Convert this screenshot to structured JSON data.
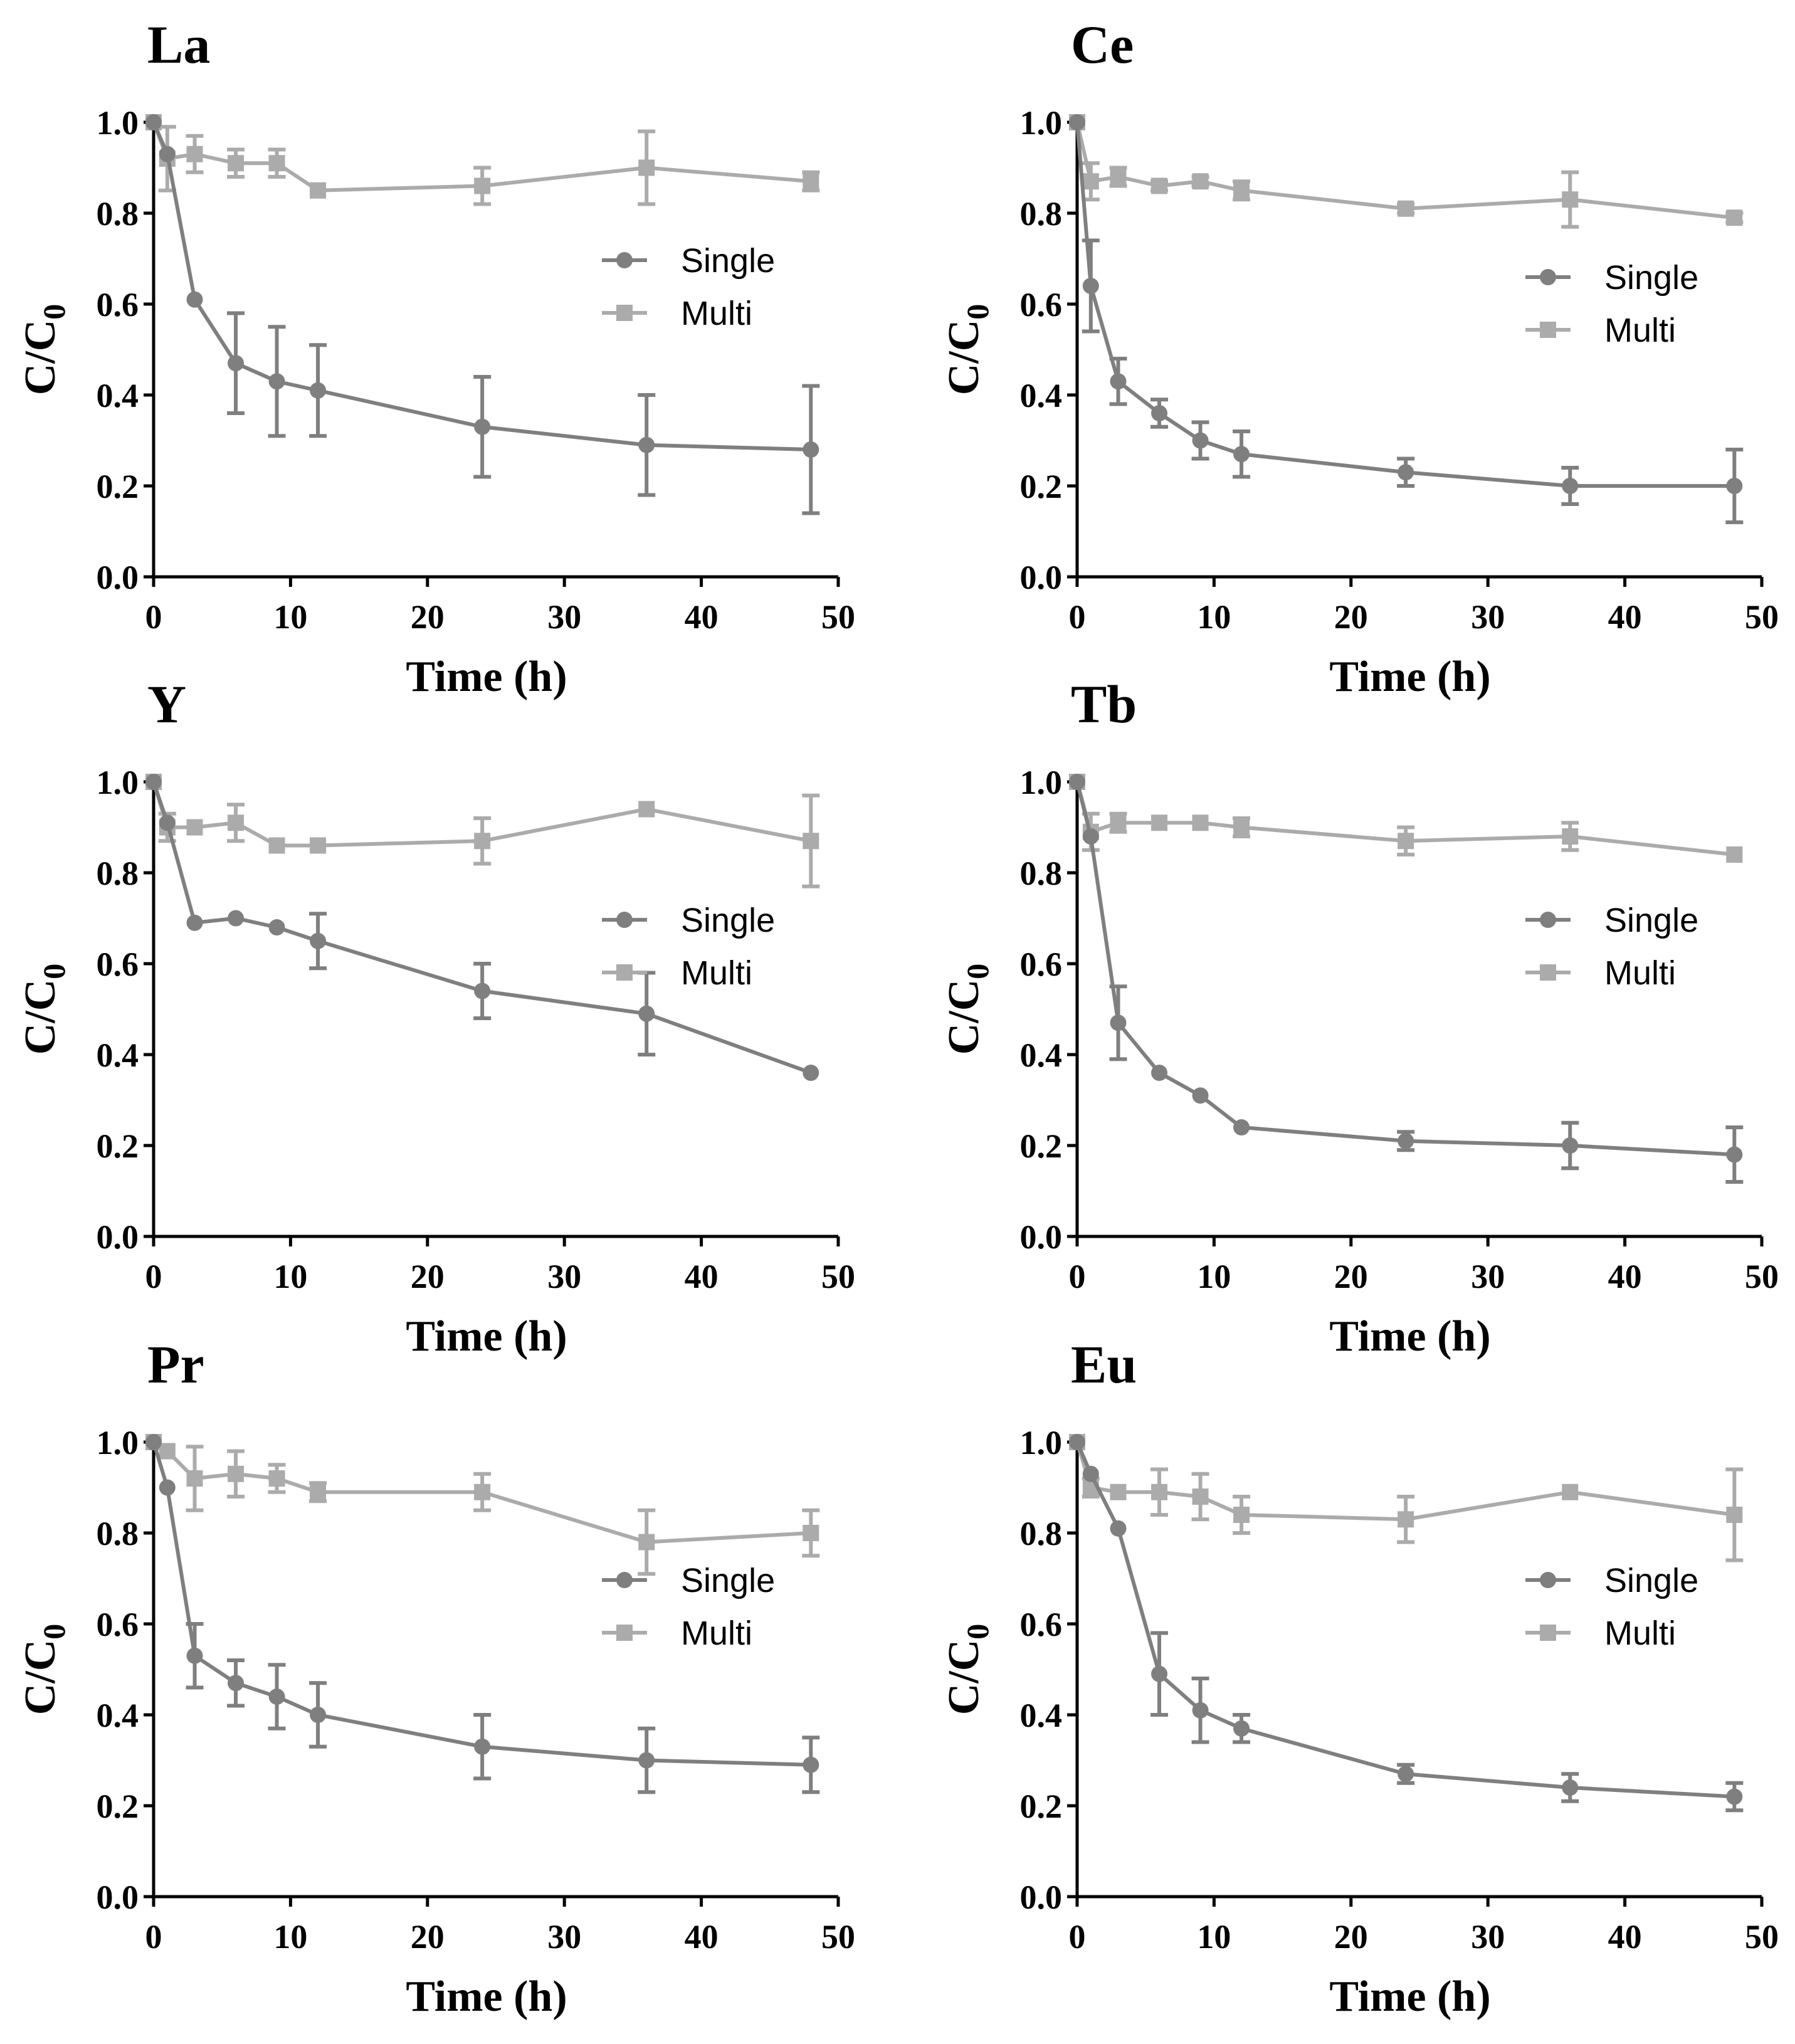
{
  "chart_data": [
    {
      "type": "line",
      "title": "La",
      "xlabel": "Time (h)",
      "ylabel": "C/C0",
      "xlim": [
        0,
        50
      ],
      "ylim": [
        0,
        1.0
      ],
      "legend": "right",
      "x": [
        0,
        1,
        3,
        6,
        9,
        12,
        24,
        36,
        48
      ],
      "series": [
        {
          "name": "Single",
          "marker": "circle",
          "color": "#7f7f7f",
          "values": [
            1.0,
            0.93,
            0.61,
            0.47,
            0.43,
            0.41,
            0.33,
            0.29,
            0.28
          ],
          "errors": [
            0,
            0,
            0,
            0.11,
            0.12,
            0.1,
            0.11,
            0.11,
            0.14
          ]
        },
        {
          "name": "Multi",
          "marker": "square",
          "color": "#ababab",
          "values": [
            1.0,
            0.92,
            0.93,
            0.91,
            0.91,
            0.85,
            0.86,
            0.9,
            0.87
          ],
          "errors": [
            0,
            0.07,
            0.04,
            0.03,
            0.03,
            0,
            0.04,
            0.08,
            0.02
          ]
        }
      ]
    },
    {
      "type": "line",
      "title": "Ce",
      "xlabel": "Time (h)",
      "ylabel": "C/C0",
      "xlim": [
        0,
        50
      ],
      "ylim": [
        0,
        1.0
      ],
      "legend": "right",
      "x": [
        0,
        1,
        3,
        6,
        9,
        12,
        24,
        36,
        48
      ],
      "series": [
        {
          "name": "Single",
          "marker": "circle",
          "color": "#7f7f7f",
          "values": [
            1.0,
            0.64,
            0.43,
            0.36,
            0.3,
            0.27,
            0.23,
            0.2,
            0.2
          ],
          "errors": [
            0,
            0.1,
            0.05,
            0.03,
            0.04,
            0.05,
            0.03,
            0.04,
            0.08
          ]
        },
        {
          "name": "Multi",
          "marker": "square",
          "color": "#ababab",
          "values": [
            1.0,
            0.87,
            0.88,
            0.86,
            0.87,
            0.85,
            0.81,
            0.83,
            0.79
          ],
          "errors": [
            0,
            0.04,
            0.02,
            0.01,
            0.01,
            0.02,
            0.01,
            0.06,
            0.01
          ]
        }
      ]
    },
    {
      "type": "line",
      "title": "Y",
      "xlabel": "Time (h)",
      "ylabel": "C/C0",
      "xlim": [
        0,
        50
      ],
      "ylim": [
        0,
        1.0
      ],
      "legend": "right",
      "x": [
        0,
        1,
        3,
        6,
        9,
        12,
        24,
        36,
        48
      ],
      "series": [
        {
          "name": "Single",
          "marker": "circle",
          "color": "#7f7f7f",
          "values": [
            1.0,
            0.91,
            0.69,
            0.7,
            0.68,
            0.65,
            0.54,
            0.49,
            0.36
          ],
          "errors": [
            0,
            0,
            0,
            0,
            0,
            0.06,
            0.06,
            0.09,
            0
          ]
        },
        {
          "name": "Multi",
          "marker": "square",
          "color": "#ababab",
          "values": [
            1.0,
            0.9,
            0.9,
            0.91,
            0.86,
            0.86,
            0.87,
            0.94,
            0.87
          ],
          "errors": [
            0,
            0.03,
            0,
            0.04,
            0,
            0,
            0.05,
            0,
            0.1
          ]
        }
      ]
    },
    {
      "type": "line",
      "title": "Tb",
      "xlabel": "Time (h)",
      "ylabel": "C/C0",
      "xlim": [
        0,
        50
      ],
      "ylim": [
        0,
        1.0
      ],
      "legend": "right",
      "x": [
        0,
        1,
        3,
        6,
        9,
        12,
        24,
        36,
        48
      ],
      "series": [
        {
          "name": "Single",
          "marker": "circle",
          "color": "#7f7f7f",
          "values": [
            1.0,
            0.88,
            0.47,
            0.36,
            0.31,
            0.24,
            0.21,
            0.2,
            0.18
          ],
          "errors": [
            0,
            0,
            0.08,
            0,
            0,
            0,
            0.02,
            0.05,
            0.06
          ]
        },
        {
          "name": "Multi",
          "marker": "square",
          "color": "#ababab",
          "values": [
            1.0,
            0.89,
            0.91,
            0.91,
            0.91,
            0.9,
            0.87,
            0.88,
            0.84
          ],
          "errors": [
            0,
            0.04,
            0.02,
            0,
            0,
            0.02,
            0.03,
            0.03,
            0
          ]
        }
      ]
    },
    {
      "type": "line",
      "title": "Pr",
      "xlabel": "Time (h)",
      "ylabel": "C/C0",
      "xlim": [
        0,
        50
      ],
      "ylim": [
        0,
        1.0
      ],
      "legend": "right",
      "x": [
        0,
        1,
        3,
        6,
        9,
        12,
        24,
        36,
        48
      ],
      "series": [
        {
          "name": "Single",
          "marker": "circle",
          "color": "#7f7f7f",
          "values": [
            1.0,
            0.9,
            0.53,
            0.47,
            0.44,
            0.4,
            0.33,
            0.3,
            0.29
          ],
          "errors": [
            0,
            0,
            0.07,
            0.05,
            0.07,
            0.07,
            0.07,
            0.07,
            0.06
          ]
        },
        {
          "name": "Multi",
          "marker": "square",
          "color": "#ababab",
          "values": [
            1.0,
            0.98,
            0.92,
            0.93,
            0.92,
            0.89,
            0.89,
            0.78,
            0.8
          ],
          "errors": [
            0,
            0,
            0.07,
            0.05,
            0.03,
            0.02,
            0.04,
            0.07,
            0.05
          ]
        }
      ]
    },
    {
      "type": "line",
      "title": "Eu",
      "xlabel": "Time (h)",
      "ylabel": "C/C0",
      "xlim": [
        0,
        50
      ],
      "ylim": [
        0,
        1.0
      ],
      "legend": "right",
      "x": [
        0,
        1,
        3,
        6,
        9,
        12,
        24,
        36,
        48
      ],
      "series": [
        {
          "name": "Single",
          "marker": "circle",
          "color": "#7f7f7f",
          "values": [
            1.0,
            0.93,
            0.81,
            0.49,
            0.41,
            0.37,
            0.27,
            0.24,
            0.22
          ],
          "errors": [
            0,
            0,
            0,
            0.09,
            0.07,
            0.03,
            0.02,
            0.03,
            0.03
          ]
        },
        {
          "name": "Multi",
          "marker": "square",
          "color": "#ababab",
          "values": [
            1.0,
            0.9,
            0.89,
            0.89,
            0.88,
            0.84,
            0.83,
            0.89,
            0.84
          ],
          "errors": [
            0,
            0.02,
            0,
            0.05,
            0.05,
            0.04,
            0.05,
            0,
            0.1
          ]
        }
      ]
    }
  ],
  "axis_ticks": {
    "x": [
      "0",
      "10",
      "20",
      "30",
      "40",
      "50"
    ],
    "y": [
      "0.0",
      "0.2",
      "0.4",
      "0.6",
      "0.8",
      "1.0"
    ]
  }
}
